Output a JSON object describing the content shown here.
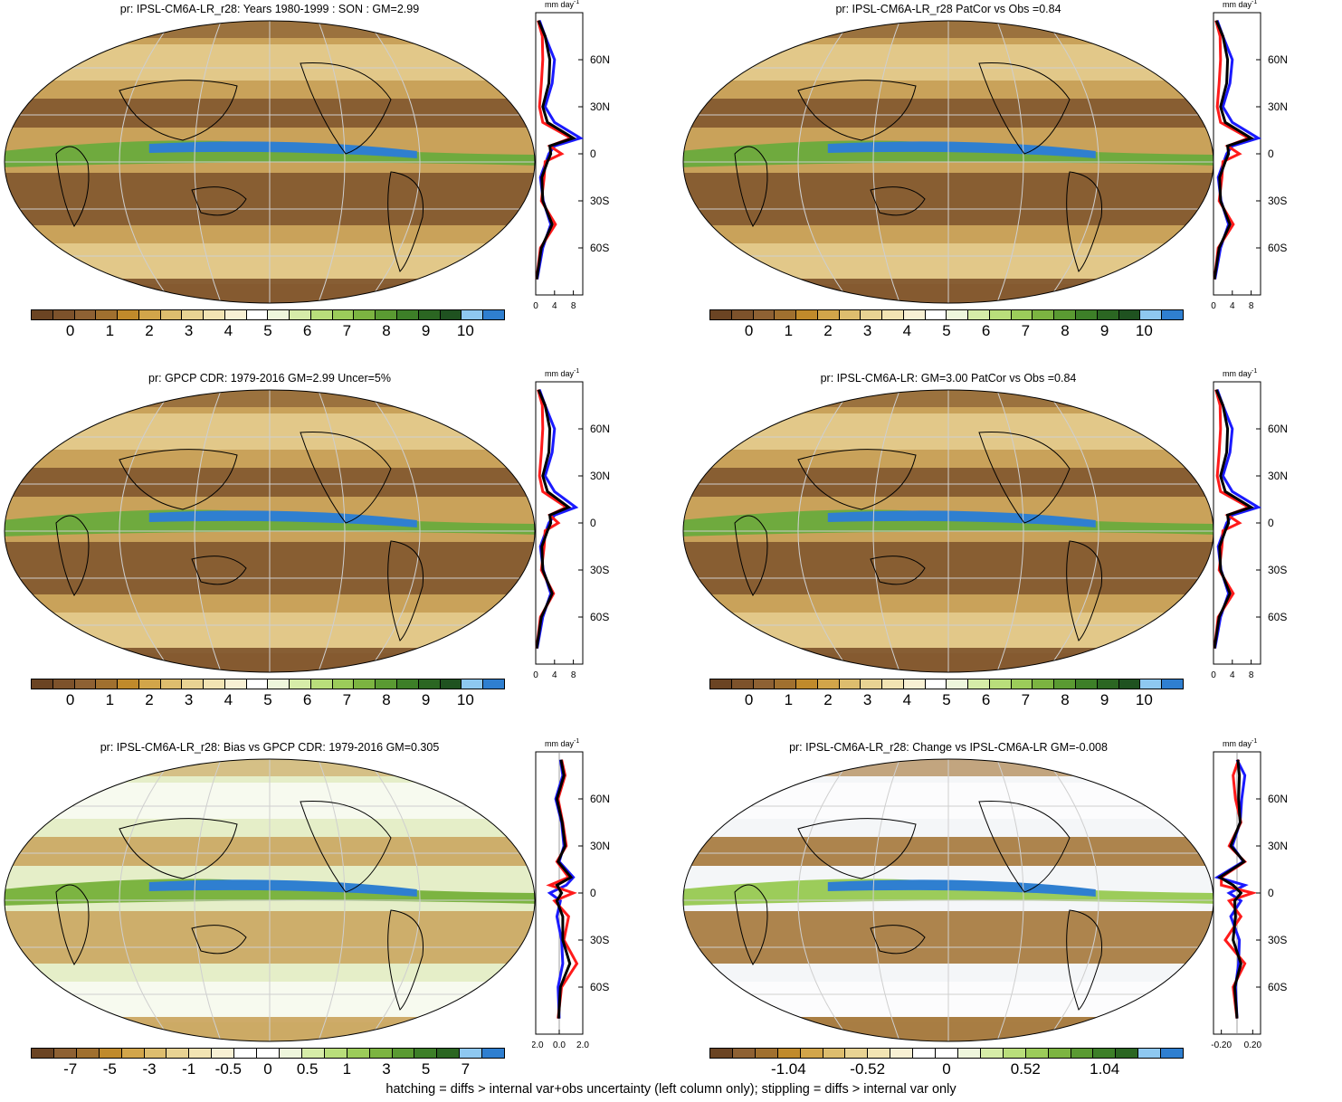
{
  "footer": "hatching = diffs > internal var+obs uncertainty (left column only); stippling = diffs > internal var only",
  "colorbars": {
    "precip": [
      "#6b4423",
      "#7d522b",
      "#8e6133",
      "#a0702f",
      "#c08a2b",
      "#d2a54a",
      "#ddbd6e",
      "#e8d393",
      "#f2e4b3",
      "#f8f0d4",
      "#ffffff",
      "#eef6dc",
      "#d6eca8",
      "#b9de7b",
      "#9ccc5a",
      "#7cb441",
      "#5a9a32",
      "#3d7f28",
      "#2b6622",
      "#1f5220",
      "#8ec8f0",
      "#2f7fd0"
    ],
    "bias": [
      "#6b4423",
      "#8e6133",
      "#a0702f",
      "#c08a2b",
      "#d2a54a",
      "#ddbd6e",
      "#e8d393",
      "#f2e4b3",
      "#f8f0d4",
      "#ffffff",
      "#ffffff",
      "#eef6dc",
      "#d6eca8",
      "#b9de7b",
      "#9ccc5a",
      "#7cb441",
      "#5a9a32",
      "#3d7f28",
      "#2b6622",
      "#8ec8f0",
      "#2f7fd0"
    ],
    "change": [
      "#6b4423",
      "#8e6133",
      "#a0702f",
      "#c08a2b",
      "#d2a54a",
      "#ddbd6e",
      "#e8d393",
      "#f2e4b3",
      "#f8f0d4",
      "#ffffff",
      "#ffffff",
      "#eef6dc",
      "#d6eca8",
      "#b9de7b",
      "#9ccc5a",
      "#7cb441",
      "#5a9a32",
      "#3d7f28",
      "#2b6622",
      "#8ec8f0",
      "#2f7fd0"
    ]
  },
  "line_colors": {
    "model": "#1a1aff",
    "obs": "#ff1a1a",
    "mean": "#000000"
  },
  "panels": [
    {
      "title": "pr: IPSL-CM6A-LR_r28: Years 1980-1999 : SON : GM=2.99",
      "cbar_labels": [
        "0",
        "1",
        "2",
        "3",
        "4",
        "5",
        "6",
        "7",
        "8",
        "9",
        "10"
      ],
      "cbar_kind": "precip",
      "zonal_unit": "mm day",
      "zonal_xticks": [
        "0",
        "4",
        "8"
      ],
      "zonal_yticks": [
        "60N",
        "30N",
        "0",
        "30S",
        "60S"
      ]
    },
    {
      "title": "pr: IPSL-CM6A-LR_r28 PatCor vs Obs =0.84",
      "cbar_labels": [
        "0",
        "1",
        "2",
        "3",
        "4",
        "5",
        "6",
        "7",
        "8",
        "9",
        "10"
      ],
      "cbar_kind": "precip",
      "zonal_unit": "mm day",
      "zonal_xticks": [
        "0",
        "4",
        "8"
      ],
      "zonal_yticks": [
        "60N",
        "30N",
        "0",
        "30S",
        "60S"
      ]
    },
    {
      "title": "pr: GPCP CDR: 1979-2016 GM=2.99 Uncer=5%",
      "cbar_labels": [
        "0",
        "1",
        "2",
        "3",
        "4",
        "5",
        "6",
        "7",
        "8",
        "9",
        "10"
      ],
      "cbar_kind": "precip",
      "zonal_unit": "mm day",
      "zonal_xticks": [
        "0",
        "4",
        "8"
      ],
      "zonal_yticks": [
        "60N",
        "30N",
        "0",
        "30S",
        "60S"
      ]
    },
    {
      "title": "pr: IPSL-CM6A-LR: GM=3.00 PatCor vs Obs =0.84",
      "cbar_labels": [
        "0",
        "1",
        "2",
        "3",
        "4",
        "5",
        "6",
        "7",
        "8",
        "9",
        "10"
      ],
      "cbar_kind": "precip",
      "zonal_unit": "mm day",
      "zonal_xticks": [
        "0",
        "4",
        "8"
      ],
      "zonal_yticks": [
        "60N",
        "30N",
        "0",
        "30S",
        "60S"
      ]
    },
    {
      "title": "pr: IPSL-CM6A-LR_r28: Bias vs GPCP CDR: 1979-2016  GM=0.305",
      "cbar_labels": [
        "-7",
        "-5",
        "-3",
        "-1",
        "-0.5",
        "0",
        "0.5",
        "1",
        "3",
        "5",
        "7"
      ],
      "cbar_kind": "bias",
      "zonal_unit": "mm day",
      "zonal_xticks": [
        "-2.0",
        "0.0",
        "2.0"
      ],
      "zonal_yticks": [
        "60N",
        "30N",
        "0",
        "30S",
        "60S"
      ]
    },
    {
      "title": "pr: IPSL-CM6A-LR_r28: Change vs IPSL-CM6A-LR GM=-0.008",
      "cbar_labels": [
        "-1.04",
        "-0.52",
        "0",
        "0.52",
        "1.04"
      ],
      "cbar_kind": "change",
      "zonal_unit": "mm day",
      "zonal_xticks": [
        "-0.20",
        "0.20"
      ],
      "zonal_yticks": [
        "60N",
        "30N",
        "0",
        "30S",
        "60S"
      ]
    }
  ],
  "chart_data": [
    {
      "type": "line",
      "title": "pr: IPSL-CM6A-LR_r28: Years 1980-1999 : SON : GM=2.99",
      "xlabel": "mm day-1",
      "ylabel": "",
      "y": [
        -80,
        -60,
        -45,
        -30,
        -15,
        -5,
        0,
        5,
        10,
        20,
        30,
        45,
        60,
        75,
        85
      ],
      "xlim": [
        0,
        10
      ],
      "series": [
        {
          "values": [
            0.3,
            1.5,
            3.2,
            1.6,
            1.0,
            2.2,
            2.8,
            4.0,
            9.5,
            4.0,
            2.0,
            3.5,
            4.0,
            2.0,
            0.8
          ]
        },
        {
          "values": [
            0.2,
            1.0,
            4.2,
            1.2,
            1.8,
            2.0,
            5.5,
            3.0,
            7.5,
            1.5,
            0.8,
            1.2,
            1.5,
            1.4,
            0.5
          ]
        },
        {
          "values": [
            0.2,
            1.2,
            3.5,
            1.5,
            1.3,
            2.5,
            3.2,
            3.0,
            8.0,
            2.5,
            1.5,
            2.8,
            3.0,
            2.0,
            0.6
          ]
        }
      ]
    },
    {
      "type": "line",
      "title": "pr: IPSL-CM6A-LR_r28 PatCor vs Obs =0.84",
      "xlabel": "mm day-1",
      "ylabel": "",
      "y": [
        -80,
        -60,
        -45,
        -30,
        -15,
        -5,
        0,
        5,
        10,
        20,
        30,
        45,
        60,
        75,
        85
      ],
      "xlim": [
        0,
        10
      ],
      "series": [
        {
          "values": [
            0.3,
            1.5,
            3.2,
            1.6,
            1.0,
            2.2,
            2.8,
            4.0,
            9.5,
            4.0,
            2.0,
            3.5,
            4.0,
            2.0,
            0.8
          ]
        },
        {
          "values": [
            0.2,
            1.0,
            4.2,
            1.2,
            1.8,
            2.0,
            5.5,
            3.0,
            7.5,
            1.5,
            0.8,
            1.2,
            1.5,
            1.4,
            0.5
          ]
        },
        {
          "values": [
            0.2,
            1.2,
            3.5,
            1.5,
            1.3,
            2.5,
            3.2,
            3.0,
            8.0,
            2.5,
            1.5,
            2.8,
            3.0,
            2.0,
            0.6
          ]
        }
      ]
    },
    {
      "type": "line",
      "title": "pr: GPCP CDR: 1979-2016 GM=2.99 Uncer=5%",
      "xlabel": "mm day-1",
      "ylabel": "",
      "y": [
        -80,
        -60,
        -45,
        -30,
        -15,
        -5,
        0,
        5,
        10,
        20,
        30,
        45,
        60,
        75,
        85
      ],
      "xlim": [
        0,
        10
      ],
      "series": [
        {
          "values": [
            0.3,
            1.5,
            3.2,
            1.6,
            1.0,
            2.2,
            2.8,
            4.0,
            8.5,
            4.0,
            2.0,
            3.5,
            4.0,
            2.0,
            0.8
          ]
        },
        {
          "values": [
            0.2,
            1.0,
            3.8,
            1.2,
            1.8,
            2.0,
            4.8,
            3.0,
            6.5,
            1.5,
            0.8,
            1.2,
            1.5,
            1.4,
            0.5
          ]
        },
        {
          "values": [
            0.2,
            1.2,
            3.5,
            1.5,
            1.3,
            2.5,
            3.2,
            3.0,
            7.0,
            2.5,
            1.5,
            2.8,
            3.0,
            2.0,
            0.6
          ]
        }
      ]
    },
    {
      "type": "line",
      "title": "pr: IPSL-CM6A-LR: GM=3.00 PatCor vs Obs =0.84",
      "xlabel": "mm day-1",
      "ylabel": "",
      "y": [
        -80,
        -60,
        -45,
        -30,
        -15,
        -5,
        0,
        5,
        10,
        20,
        30,
        45,
        60,
        75,
        85
      ],
      "xlim": [
        0,
        10
      ],
      "series": [
        {
          "values": [
            0.3,
            1.5,
            3.2,
            1.6,
            1.0,
            2.2,
            2.8,
            4.0,
            9.5,
            4.0,
            2.0,
            3.5,
            4.0,
            2.0,
            0.8
          ]
        },
        {
          "values": [
            0.2,
            1.0,
            4.2,
            1.2,
            1.8,
            2.0,
            5.5,
            3.0,
            7.5,
            1.5,
            0.8,
            1.2,
            1.5,
            1.4,
            0.5
          ]
        },
        {
          "values": [
            0.2,
            1.2,
            3.5,
            1.5,
            1.3,
            2.5,
            3.2,
            3.0,
            8.0,
            2.5,
            1.5,
            2.8,
            3.0,
            2.0,
            0.6
          ]
        }
      ]
    },
    {
      "type": "line",
      "title": "pr: IPSL-CM6A-LR_r28: Bias vs GPCP CDR: 1979-2016  GM=0.305",
      "xlabel": "mm day-1",
      "ylabel": "",
      "y": [
        -80,
        -60,
        -45,
        -30,
        -15,
        -5,
        0,
        5,
        10,
        20,
        30,
        45,
        60,
        75,
        85
      ],
      "xlim": [
        -2,
        2
      ],
      "series": [
        {
          "values": [
            0.0,
            -0.1,
            0.3,
            0.2,
            -0.2,
            0.1,
            -0.8,
            0.6,
            1.2,
            0.0,
            0.4,
            0.2,
            -0.3,
            0.3,
            0.1
          ]
        },
        {
          "values": [
            -0.1,
            0.2,
            1.5,
            0.4,
            0.8,
            -0.4,
            1.2,
            -0.8,
            0.8,
            -0.2,
            0.6,
            0.3,
            -0.1,
            0.5,
            0.2
          ]
        },
        {
          "values": [
            -0.05,
            0.1,
            0.9,
            0.3,
            0.3,
            -0.2,
            0.2,
            -0.2,
            1.0,
            -0.1,
            0.5,
            0.25,
            -0.2,
            0.4,
            0.15
          ]
        }
      ]
    },
    {
      "type": "line",
      "title": "pr: IPSL-CM6A-LR_r28: Change vs IPSL-CM6A-LR GM=-0.008",
      "xlabel": "mm day-1",
      "ylabel": "",
      "y": [
        -80,
        -60,
        -45,
        -30,
        -15,
        -5,
        0,
        5,
        10,
        20,
        30,
        45,
        60,
        75,
        85
      ],
      "xlim": [
        -0.3,
        0.3
      ],
      "series": [
        {
          "values": [
            0.0,
            -0.02,
            0.02,
            0.03,
            -0.08,
            0.05,
            -0.1,
            0.1,
            -0.25,
            0.08,
            -0.06,
            0.04,
            0.06,
            0.1,
            0.0
          ]
        },
        {
          "values": [
            0.0,
            -0.05,
            0.1,
            -0.15,
            0.05,
            -0.1,
            0.2,
            -0.2,
            -0.2,
            0.1,
            -0.1,
            0.05,
            -0.02,
            -0.05,
            0.02
          ]
        },
        {
          "values": [
            0.0,
            -0.03,
            0.05,
            -0.05,
            -0.02,
            -0.03,
            0.05,
            -0.05,
            -0.22,
            0.09,
            -0.08,
            0.04,
            0.02,
            0.03,
            0.01
          ]
        }
      ]
    }
  ]
}
